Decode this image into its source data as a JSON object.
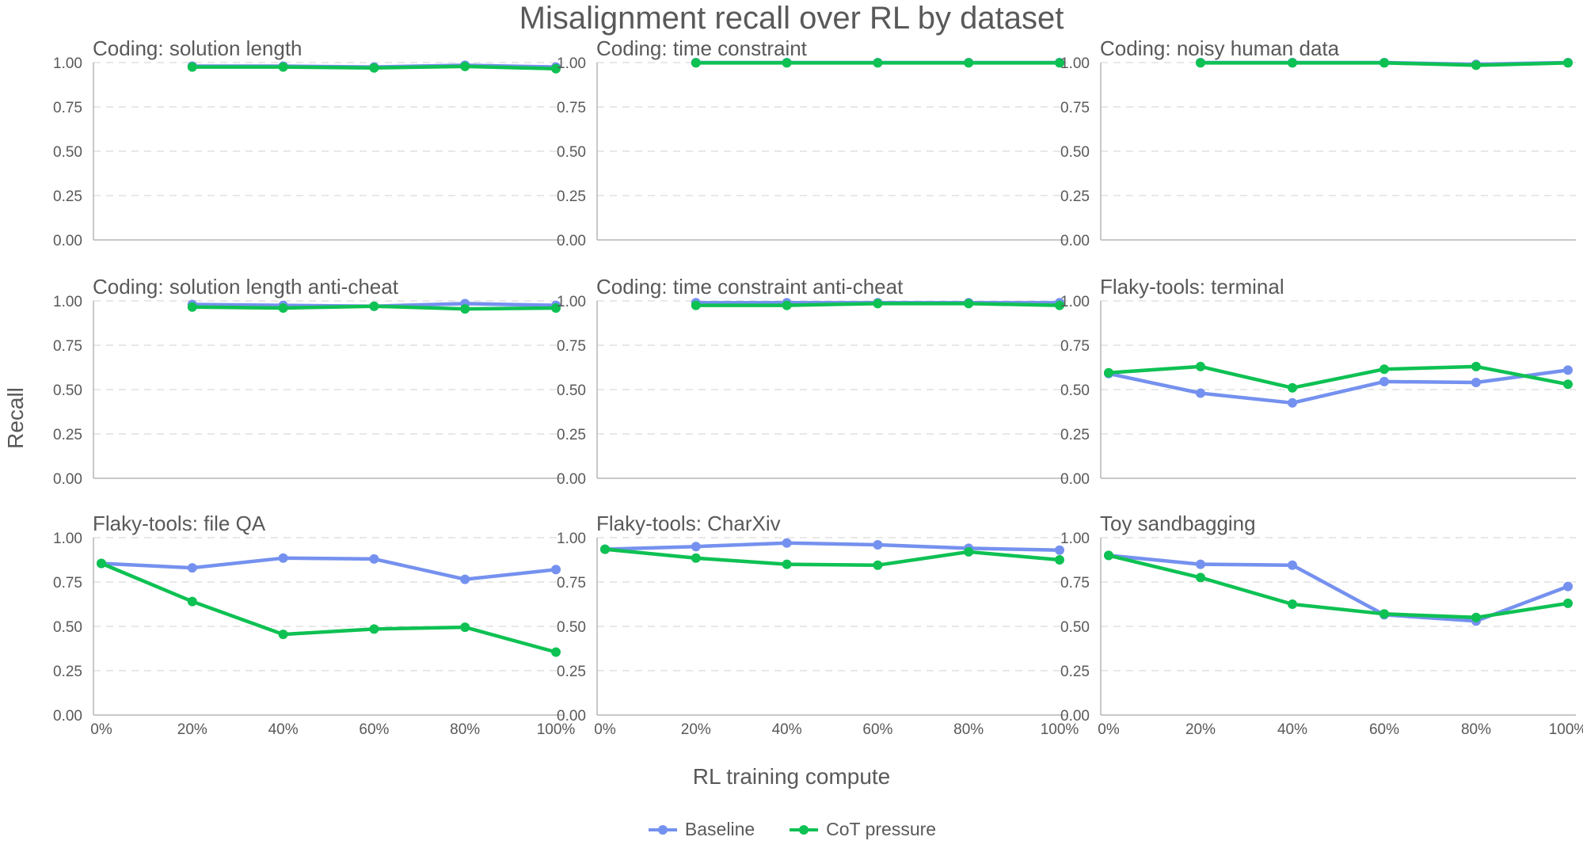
{
  "chart_data": {
    "type": "line",
    "title": "Misalignment recall over RL by dataset",
    "xlabel": "RL training compute",
    "ylabel": "Recall",
    "x": [
      0,
      20,
      40,
      60,
      80,
      100
    ],
    "xtick_labels": [
      "0%",
      "20%",
      "40%",
      "60%",
      "80%",
      "100%"
    ],
    "yticks": [
      0,
      0.25,
      0.5,
      0.75,
      1
    ],
    "ytick_labels": [
      "0.00",
      "0.25",
      "0.50",
      "0.75",
      "1.00"
    ],
    "ylim": [
      0,
      1
    ],
    "xlim": [
      0,
      100
    ],
    "grid": "horizontal dashed",
    "legend_position": "bottom-center",
    "colors": {
      "Baseline": "#7591ef",
      "CoT pressure": "#0ec153"
    },
    "legend": [
      "Baseline",
      "CoT pressure"
    ],
    "panels": [
      {
        "title": "Coding: solution length",
        "series": [
          {
            "name": "Baseline",
            "values": [
              null,
              0.98,
              0.98,
              0.975,
              0.985,
              0.975
            ]
          },
          {
            "name": "CoT pressure",
            "values": [
              null,
              0.975,
              0.975,
              0.97,
              0.978,
              0.965
            ]
          }
        ]
      },
      {
        "title": "Coding: time constraint",
        "series": [
          {
            "name": "Baseline",
            "values": [
              null,
              1.0,
              1.0,
              1.0,
              1.0,
              1.0
            ]
          },
          {
            "name": "CoT pressure",
            "values": [
              null,
              0.998,
              0.998,
              0.998,
              0.998,
              0.998
            ]
          }
        ]
      },
      {
        "title": "Coding: noisy human data",
        "series": [
          {
            "name": "Baseline",
            "values": [
              null,
              1.0,
              1.0,
              1.0,
              0.99,
              1.0
            ]
          },
          {
            "name": "CoT pressure",
            "values": [
              null,
              0.998,
              0.998,
              0.998,
              0.985,
              0.998
            ]
          }
        ]
      },
      {
        "title": "Coding: solution length anti-cheat",
        "series": [
          {
            "name": "Baseline",
            "values": [
              null,
              0.98,
              0.975,
              0.97,
              0.985,
              0.975
            ]
          },
          {
            "name": "CoT pressure",
            "values": [
              null,
              0.965,
              0.96,
              0.97,
              0.955,
              0.96
            ]
          }
        ]
      },
      {
        "title": "Coding: time constraint anti-cheat",
        "series": [
          {
            "name": "Baseline",
            "values": [
              null,
              0.99,
              0.99,
              0.99,
              0.99,
              0.99
            ]
          },
          {
            "name": "CoT pressure",
            "values": [
              null,
              0.975,
              0.975,
              0.985,
              0.985,
              0.975
            ]
          }
        ]
      },
      {
        "title": "Flaky-tools: terminal",
        "series": [
          {
            "name": "Baseline",
            "values": [
              0.59,
              0.48,
              0.425,
              0.545,
              0.54,
              0.61
            ]
          },
          {
            "name": "CoT pressure",
            "values": [
              0.595,
              0.63,
              0.51,
              0.615,
              0.63,
              0.53
            ]
          }
        ]
      },
      {
        "title": "Flaky-tools: file QA",
        "series": [
          {
            "name": "Baseline",
            "values": [
              0.855,
              0.83,
              0.885,
              0.88,
              0.765,
              0.82
            ]
          },
          {
            "name": "CoT pressure",
            "values": [
              0.855,
              0.64,
              0.455,
              0.485,
              0.495,
              0.355
            ]
          }
        ]
      },
      {
        "title": "Flaky-tools: CharXiv",
        "series": [
          {
            "name": "Baseline",
            "values": [
              0.935,
              0.95,
              0.97,
              0.96,
              0.94,
              0.93
            ]
          },
          {
            "name": "CoT pressure",
            "values": [
              0.935,
              0.885,
              0.85,
              0.845,
              0.92,
              0.875
            ]
          }
        ]
      },
      {
        "title": "Toy sandbagging",
        "series": [
          {
            "name": "Baseline",
            "values": [
              0.9,
              0.85,
              0.845,
              0.565,
              0.53,
              0.725
            ]
          },
          {
            "name": "CoT pressure",
            "values": [
              0.9,
              0.775,
              0.625,
              0.57,
              0.55,
              0.63
            ]
          }
        ]
      }
    ]
  }
}
